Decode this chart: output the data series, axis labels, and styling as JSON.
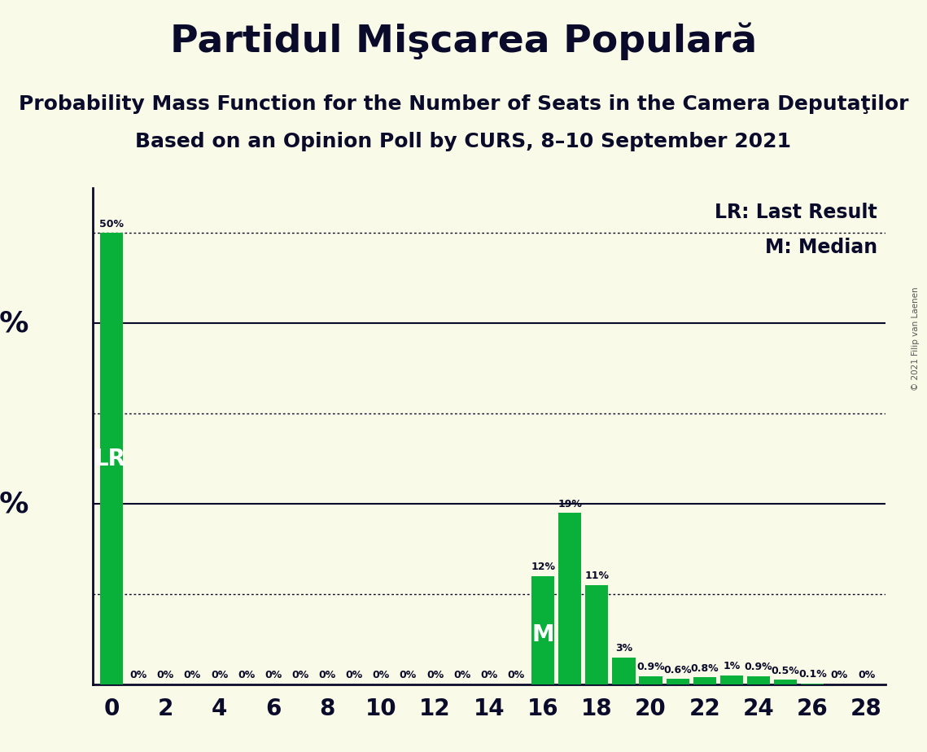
{
  "title": "Partidul Mişcarea Populară",
  "subtitle1": "Probability Mass Function for the Number of Seats in the Camera Deputaţilor",
  "subtitle2": "Based on an Opinion Poll by CURS, 8–10 September 2021",
  "copyright": "© 2021 Filip van Laenen",
  "seats": [
    0,
    1,
    2,
    3,
    4,
    5,
    6,
    7,
    8,
    9,
    10,
    11,
    12,
    13,
    14,
    15,
    16,
    17,
    18,
    19,
    20,
    21,
    22,
    23,
    24,
    25,
    26,
    27,
    28
  ],
  "probabilities": [
    50,
    0,
    0,
    0,
    0,
    0,
    0,
    0,
    0,
    0,
    0,
    0,
    0,
    0,
    0,
    0,
    12,
    19,
    11,
    3,
    0.9,
    0.6,
    0.8,
    1.0,
    0.9,
    0.5,
    0.1,
    0,
    0
  ],
  "bar_color": "#09B13A",
  "background_color": "#FAFAE8",
  "last_result_seats": 0,
  "median_seats": 16,
  "ylim_max": 55,
  "x_tick_positions": [
    0,
    2,
    4,
    6,
    8,
    10,
    12,
    14,
    16,
    18,
    20,
    22,
    24,
    26,
    28
  ],
  "title_fontsize": 34,
  "subtitle_fontsize": 18,
  "tick_fontsize": 20,
  "ylabel_fontsize": 26,
  "legend_fontsize": 17,
  "bar_label_fontsize": 9,
  "lr_label_fontsize": 20,
  "median_label_fontsize": 20
}
